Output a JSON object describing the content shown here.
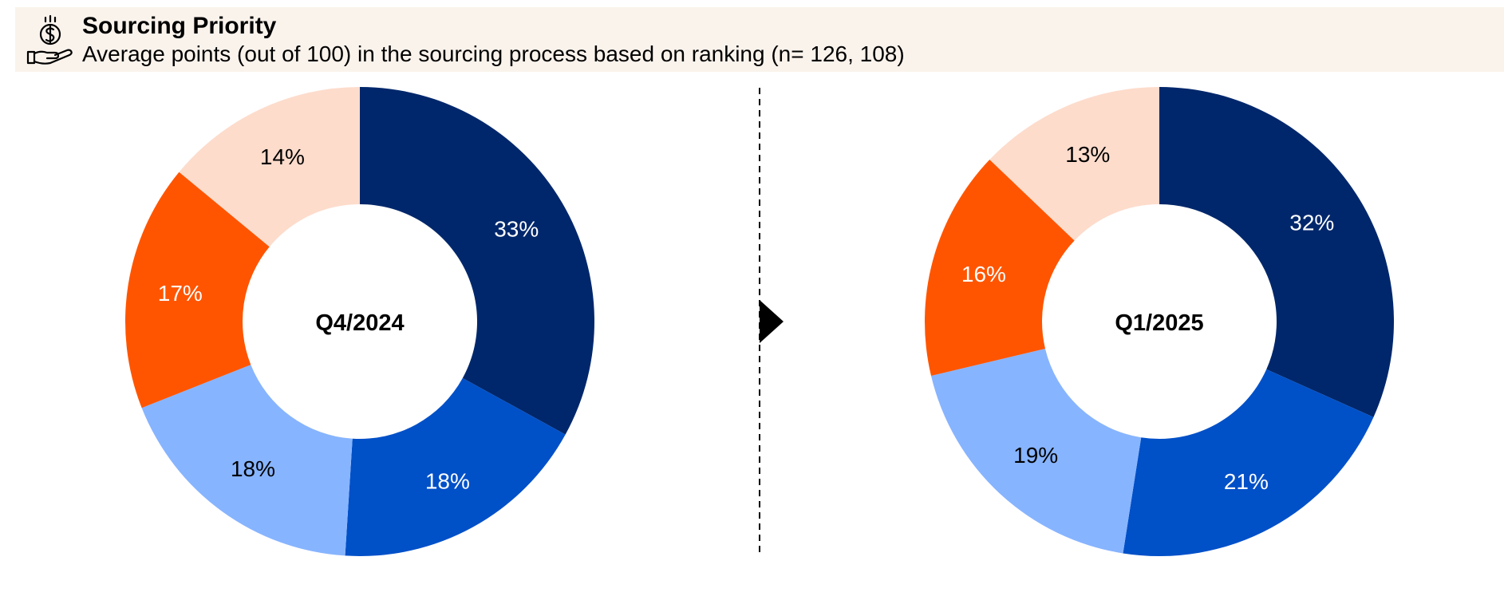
{
  "header": {
    "title": "Sourcing Priority",
    "subtitle": "Average points (out of 100) in the sourcing process based on ranking (n= 126, 108)",
    "icon": "money-hand-icon"
  },
  "colors": {
    "header_bg": "#faf3ec",
    "slice_colors": [
      "#00276b",
      "#0050c8",
      "#87b4ff",
      "#ff5500",
      "#fddccc"
    ],
    "label_colors": [
      "#ffffff",
      "#ffffff",
      "#000000",
      "#ffffff",
      "#000000"
    ],
    "divider": "#000000"
  },
  "chart_data": [
    {
      "type": "donut",
      "center_label": "Q4/2024",
      "values": [
        33,
        18,
        18,
        17,
        14
      ],
      "labels": [
        "33%",
        "18%",
        "18%",
        "17%",
        "14%"
      ]
    },
    {
      "type": "donut",
      "center_label": "Q1/2025",
      "values": [
        32,
        21,
        19,
        16,
        13
      ],
      "labels": [
        "32%",
        "21%",
        "19%",
        "16%",
        "13%"
      ]
    }
  ]
}
